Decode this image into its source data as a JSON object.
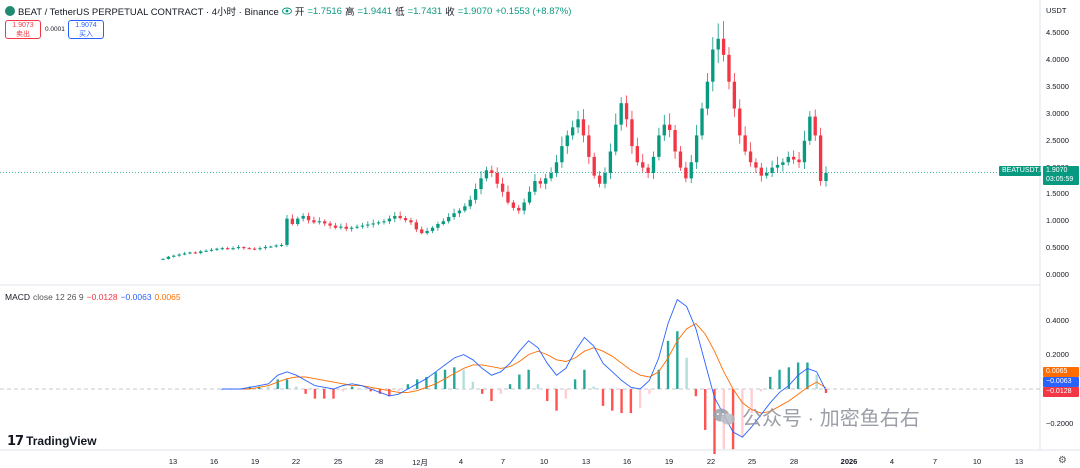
{
  "header": {
    "symbol": "BEAT / TetherUS PERPETUAL CONTRACT · 4小时 · Binance",
    "open_label": "开",
    "open_value": "=1.7516",
    "high_label": "高",
    "high_value": "=1.9441",
    "low_label": "低",
    "low_value": "=1.7431",
    "close_label": "收",
    "close_value": "=1.9070",
    "change": "+0.1553 (+8.87%)"
  },
  "trade": {
    "sell_price": "1.9073",
    "sell_label": "卖出",
    "spread": "0.0001",
    "buy_price": "1.9074",
    "buy_label": "买入"
  },
  "price_axis": {
    "currency": "USDT",
    "ticks": [
      "4.5000",
      "4.0000",
      "3.5000",
      "3.0000",
      "2.5000",
      "2.0000",
      "1.5000",
      "1.0000",
      "0.5000",
      "0.0000"
    ],
    "last_price": "1.9070",
    "countdown": "03:05:59",
    "symbol_tag": "BEATUSDT.P"
  },
  "macd": {
    "name": "MACD",
    "params": "close 12 26 9",
    "hist": "−0.0128",
    "macd": "−0.0063",
    "signal": "0.0065",
    "axis_ticks": [
      "0.4000",
      "0.2000",
      "−0.2000"
    ]
  },
  "time_axis": [
    "13",
    "16",
    "19",
    "22",
    "25",
    "28",
    "12月",
    "4",
    "7",
    "10",
    "13",
    "16",
    "19",
    "22",
    "25",
    "28",
    "2026",
    "4",
    "7",
    "10",
    "13"
  ],
  "branding": {
    "tradingview": "TradingView",
    "watermark": "公众号 · 加密鱼右右"
  },
  "colors": {
    "up": "#089981",
    "down": "#f23645",
    "macd_line": "#2962ff",
    "signal_line": "#ff6d00",
    "last_price_bg": "#089981"
  },
  "chart_data": {
    "type": "candlestick",
    "timeframe": "4h",
    "ylim": [
      0,
      4.6
    ],
    "closes": [
      0.3,
      0.34,
      0.36,
      0.38,
      0.4,
      0.42,
      0.41,
      0.44,
      0.45,
      0.47,
      0.49,
      0.5,
      0.48,
      0.5,
      0.52,
      0.5,
      0.49,
      0.48,
      0.5,
      0.52,
      0.53,
      0.55,
      0.56,
      1.05,
      0.95,
      1.05,
      1.1,
      1.02,
      0.98,
      1.0,
      0.96,
      0.92,
      0.88,
      0.9,
      0.86,
      0.88,
      0.9,
      0.92,
      0.94,
      0.96,
      0.98,
      1.0,
      1.05,
      1.1,
      1.06,
      1.02,
      0.98,
      0.85,
      0.78,
      0.82,
      0.88,
      0.95,
      1.0,
      1.08,
      1.15,
      1.2,
      1.28,
      1.4,
      1.6,
      1.8,
      1.95,
      1.9,
      1.7,
      1.55,
      1.35,
      1.25,
      1.2,
      1.35,
      1.55,
      1.75,
      1.7,
      1.8,
      1.9,
      2.1,
      2.4,
      2.6,
      2.75,
      2.9,
      2.6,
      2.2,
      1.85,
      1.7,
      1.9,
      2.3,
      2.8,
      3.2,
      2.9,
      2.4,
      2.1,
      2.0,
      1.9,
      2.2,
      2.6,
      2.8,
      2.7,
      2.3,
      2.0,
      1.8,
      2.1,
      2.6,
      3.1,
      3.6,
      4.2,
      4.4,
      4.1,
      3.6,
      3.1,
      2.6,
      2.3,
      2.1,
      2.0,
      1.85,
      1.9,
      2.0,
      2.05,
      2.1,
      2.2,
      2.15,
      2.1,
      2.5,
      2.95,
      2.6,
      1.75,
      1.9
    ],
    "macd_values": [
      0.0,
      0.0,
      0.0,
      0.01,
      0.02,
      0.03,
      0.08,
      0.1,
      0.08,
      0.05,
      0.02,
      0.01,
      0.0,
      0.02,
      0.03,
      0.02,
      0.0,
      -0.02,
      -0.04,
      -0.03,
      0.0,
      0.03,
      0.06,
      0.1,
      0.14,
      0.18,
      0.2,
      0.17,
      0.12,
      0.08,
      0.1,
      0.15,
      0.22,
      0.28,
      0.24,
      0.15,
      0.08,
      0.12,
      0.22,
      0.3,
      0.25,
      0.15,
      0.1,
      0.05,
      0.01,
      0.0,
      0.05,
      0.18,
      0.38,
      0.52,
      0.48,
      0.35,
      0.15,
      -0.05,
      -0.15,
      -0.25,
      -0.28,
      -0.22,
      -0.15,
      -0.08,
      -0.02,
      0.02,
      0.08,
      0.12,
      0.1,
      -0.01
    ],
    "signal_values": [
      0.0,
      0.0,
      0.0,
      0.0,
      0.01,
      0.02,
      0.04,
      0.06,
      0.07,
      0.07,
      0.06,
      0.05,
      0.04,
      0.03,
      0.02,
      0.02,
      0.01,
      0.0,
      -0.01,
      -0.02,
      -0.02,
      -0.01,
      0.01,
      0.03,
      0.06,
      0.09,
      0.12,
      0.14,
      0.14,
      0.13,
      0.12,
      0.13,
      0.16,
      0.2,
      0.22,
      0.2,
      0.17,
      0.16,
      0.18,
      0.22,
      0.24,
      0.22,
      0.19,
      0.15,
      0.11,
      0.08,
      0.07,
      0.1,
      0.18,
      0.28,
      0.35,
      0.38,
      0.32,
      0.22,
      0.1,
      0.0,
      -0.08,
      -0.12,
      -0.14,
      -0.13,
      -0.1,
      -0.07,
      -0.03,
      0.01,
      0.04,
      0.0065
    ]
  }
}
